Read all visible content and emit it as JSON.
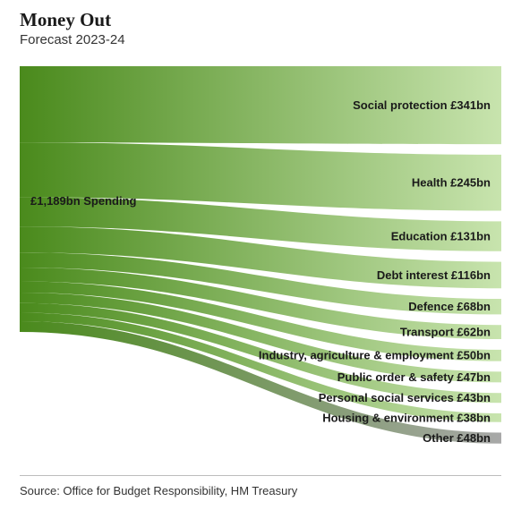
{
  "header": {
    "title": "Money Out",
    "subtitle": "Forecast 2023-24"
  },
  "footer": {
    "source": "Source: Office for Budget Responsibility, HM Treasury"
  },
  "colors": {
    "source_dark": "#4a8a1c",
    "target_light": "#c8e4ae",
    "other_color": "#a8a8a8"
  },
  "chart_data": {
    "type": "sankey",
    "title": "Money Out",
    "subtitle": "Forecast 2023-24",
    "source_node": {
      "label": "£1,189bn Spending",
      "value": 1189
    },
    "flows": [
      {
        "label": "Social protection £341bn",
        "value": 341
      },
      {
        "label": "Health £245bn",
        "value": 245
      },
      {
        "label": "Education £131bn",
        "value": 131
      },
      {
        "label": "Debt interest £116bn",
        "value": 116
      },
      {
        "label": "Defence £68bn",
        "value": 68
      },
      {
        "label": "Transport £62bn",
        "value": 62
      },
      {
        "label": "Industry, agriculture & employment £50bn",
        "value": 50
      },
      {
        "label": "Public order & safety £47bn",
        "value": 47
      },
      {
        "label": "Personal social services £43bn",
        "value": 43
      },
      {
        "label": "Housing & environment £38bn",
        "value": 38
      },
      {
        "label": "Other £48bn",
        "value": 48
      }
    ]
  }
}
